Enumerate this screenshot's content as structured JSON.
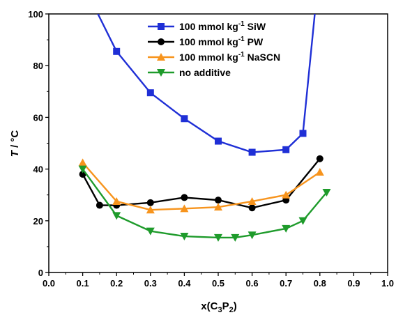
{
  "chart_data": {
    "type": "line",
    "xlabel": "x(C3P2)",
    "xlabel_parts": {
      "x": "x(C",
      "sub1": "3",
      "p": "P",
      "sub2": "2",
      "close": ")"
    },
    "ylabel": "T / °C",
    "ylabel_parts": {
      "italic": "T",
      "rest": " / °C"
    },
    "xlim": [
      0.0,
      1.0
    ],
    "ylim": [
      0,
      100
    ],
    "x_ticks": [
      "0.0",
      "0.1",
      "0.2",
      "0.3",
      "0.4",
      "0.5",
      "0.6",
      "0.7",
      "0.8",
      "0.9",
      "1.0"
    ],
    "y_ticks": [
      "0",
      "20",
      "40",
      "60",
      "80",
      "100"
    ],
    "grid": false,
    "legend_position": "top-right",
    "series": [
      {
        "name": "100 mmol kg-1 SiW",
        "label_main": "100 mmol kg",
        "label_sup": "-1",
        "label_tail": " SiW",
        "color": "#1f2fd6",
        "marker": "square",
        "x": [
          0.2,
          0.3,
          0.4,
          0.5,
          0.6,
          0.7,
          0.75
        ],
        "y": [
          85.5,
          69.5,
          59.5,
          50.8,
          46.5,
          47.5,
          53.8
        ],
        "curve_left": [
          [
            0.145,
            100
          ],
          [
            0.2,
            85.5
          ]
        ],
        "curve_right": [
          [
            0.75,
            53.8
          ],
          [
            0.785,
            100
          ]
        ]
      },
      {
        "name": "100 mmol kg-1 PW",
        "label_main": "100 mmol kg",
        "label_sup": "-1",
        "label_tail": " PW",
        "color": "#000000",
        "marker": "circle",
        "x": [
          0.1,
          0.15,
          0.2,
          0.3,
          0.4,
          0.5,
          0.6,
          0.7,
          0.8
        ],
        "y": [
          38,
          26,
          26,
          27,
          29,
          28,
          25,
          28,
          44
        ]
      },
      {
        "name": "100 mmol kg-1 NaSCN",
        "label_main": "100 mmol kg",
        "label_sup": "-1",
        "label_tail": " NaSCN",
        "color": "#f7941d",
        "marker": "triangle-up",
        "x": [
          0.1,
          0.2,
          0.3,
          0.4,
          0.5,
          0.6,
          0.7,
          0.8
        ],
        "y": [
          42.5,
          27.5,
          24.2,
          24.7,
          25.3,
          27.5,
          30,
          38.8
        ]
      },
      {
        "name": "no additive",
        "label_main": "no additive",
        "label_sup": "",
        "label_tail": "",
        "color": "#1e9b2b",
        "marker": "triangle-down",
        "x": [
          0.1,
          0.2,
          0.3,
          0.4,
          0.5,
          0.55,
          0.6,
          0.7,
          0.75,
          0.82
        ],
        "y": [
          40,
          22,
          16,
          14,
          13.5,
          13.5,
          14.5,
          17,
          20,
          31
        ]
      }
    ]
  }
}
